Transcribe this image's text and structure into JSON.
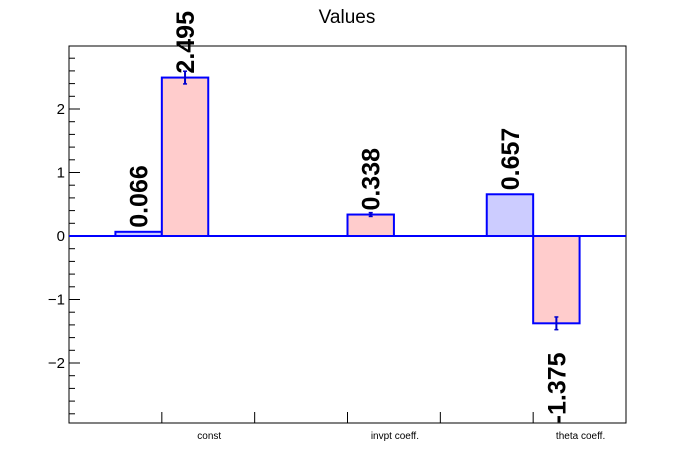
{
  "chart_data": {
    "type": "bar",
    "title": "Values",
    "xlabel": "",
    "ylabel": "",
    "ylim": [
      -2.95,
      2.95
    ],
    "yticks": [
      -2,
      -1,
      0,
      1,
      2
    ],
    "ytick_labels": [
      "−2",
      "−1",
      "0",
      "1",
      "2"
    ],
    "categories": [
      "const",
      "invpt coeff.",
      "theta coeff."
    ],
    "series": [
      {
        "color": "#ccccff",
        "edge_color": "#0000ff",
        "values": [
          0.066,
          null,
          0.657
        ],
        "labels": [
          "0.066",
          "",
          "0.657"
        ],
        "errors": [
          null,
          null,
          null
        ]
      },
      {
        "color": "#ffcccc",
        "edge_color": "#0000ff",
        "values": [
          2.495,
          0.338,
          -1.375
        ],
        "labels": [
          "2.495",
          "0.338",
          "-1.375"
        ],
        "errors": [
          0.1,
          0.03,
          0.1
        ]
      }
    ],
    "grid": false,
    "legend": "none"
  }
}
